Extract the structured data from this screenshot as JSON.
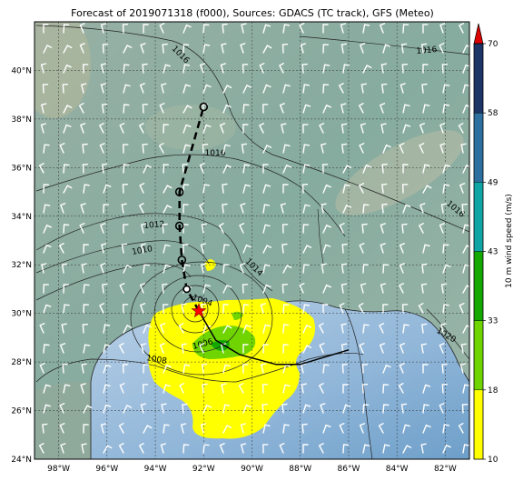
{
  "title": "Forecast of 2019071318 (f000), Sources: GDACS (TC track), GFS (Meteo)",
  "colors": {
    "sea_deep": "#7fa99e",
    "land": "#8fb1a4",
    "gulf_light": "#c9dcef",
    "gulf_mid": "#9ec0df",
    "wind_10_18": "#ffff00",
    "wind_18_33": "#6fd400",
    "wind_33_43": "#15a800",
    "wind_43_49": "#0fa5a5",
    "wind_49_58": "#2d6f9e",
    "wind_58_70": "#1d3466",
    "colorbar_extend": "#dd0000",
    "storm_marker": "#ff0000"
  },
  "map": {
    "lon_range": [
      -99,
      -81
    ],
    "lat_range": [
      24,
      42
    ],
    "lon_ticks": [
      "98°W",
      "96°W",
      "94°W",
      "92°W",
      "90°W",
      "88°W",
      "86°W",
      "84°W",
      "82°W"
    ],
    "lat_ticks": [
      "24°N",
      "26°N",
      "28°N",
      "30°N",
      "32°N",
      "34°N",
      "36°N",
      "38°N",
      "40°N"
    ]
  },
  "colorbar": {
    "label": "10 m wind speed (m/s)",
    "ticks": [
      "10",
      "18",
      "33",
      "43",
      "49",
      "58",
      "70"
    ]
  },
  "isobars": {
    "labels": [
      "1016",
      "1016",
      "1016",
      "1016",
      "1012",
      "1010",
      "1014",
      "1004",
      "1006",
      "1008",
      "1020"
    ]
  },
  "track": {
    "current_position": {
      "lon": -92.2,
      "lat": 30.1
    },
    "past_track": [
      {
        "lon": -92.2,
        "lat": 30.1
      },
      {
        "lon": -91.5,
        "lat": 28.9
      },
      {
        "lon": -90.5,
        "lat": 28.3
      },
      {
        "lon": -89.0,
        "lat": 27.9
      },
      {
        "lon": -88.0,
        "lat": 27.9
      },
      {
        "lon": -87.0,
        "lat": 28.2
      },
      {
        "lon": -86.0,
        "lat": 28.5
      }
    ],
    "forecast_points": [
      {
        "lon": -92.7,
        "lat": 31.0
      },
      {
        "lon": -92.9,
        "lat": 32.2
      },
      {
        "lon": -93.0,
        "lat": 33.6
      },
      {
        "lon": -93.0,
        "lat": 35.0
      },
      {
        "lon": -92.0,
        "lat": 38.5
      }
    ]
  }
}
